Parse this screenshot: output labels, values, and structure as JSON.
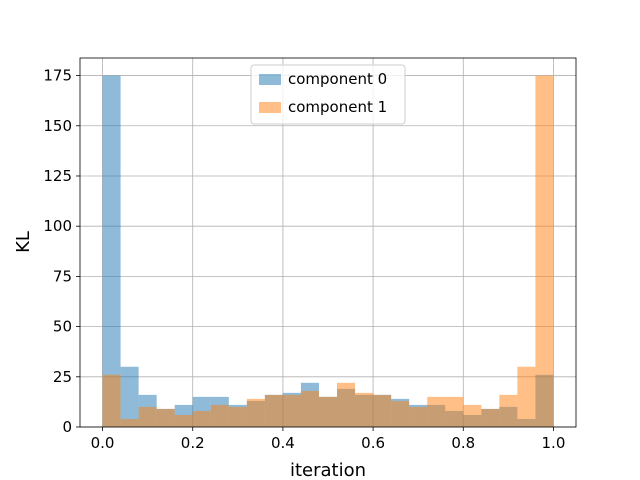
{
  "chart_data": {
    "type": "bar",
    "title": "",
    "xlabel": "iteration",
    "ylabel": "KL",
    "xlim": [
      -0.05,
      1.05
    ],
    "ylim": [
      0,
      183.75
    ],
    "grid": true,
    "legend_position": "top-center",
    "x_ticks": [
      0.0,
      0.2,
      0.4,
      0.6,
      0.8,
      1.0
    ],
    "x_tick_labels": [
      "0.0",
      "0.2",
      "0.4",
      "0.6",
      "0.8",
      "1.0"
    ],
    "y_ticks": [
      0,
      25,
      50,
      75,
      100,
      125,
      150,
      175
    ],
    "y_tick_labels": [
      "0",
      "25",
      "50",
      "75",
      "100",
      "125",
      "150",
      "175"
    ],
    "bin_edges": [
      0.0,
      0.04,
      0.08,
      0.12,
      0.16,
      0.2,
      0.24,
      0.28,
      0.32,
      0.36,
      0.4,
      0.44,
      0.48,
      0.52,
      0.56,
      0.6,
      0.64,
      0.68,
      0.72,
      0.76,
      0.8,
      0.84,
      0.88,
      0.92,
      0.96,
      1.0
    ],
    "series": [
      {
        "name": "component 0",
        "color": "#1f77b4",
        "values": [
          175,
          30,
          16,
          9,
          11,
          15,
          15,
          11,
          13,
          16,
          17,
          22,
          15,
          19,
          16,
          16,
          14,
          11,
          11,
          8,
          6,
          9,
          10,
          4,
          26
        ]
      },
      {
        "name": "component 1",
        "color": "#ff7f0e",
        "values": [
          26,
          4,
          10,
          9,
          6,
          8,
          11,
          10,
          14,
          16,
          16,
          18,
          15,
          22,
          17,
          16,
          13,
          10,
          15,
          15,
          11,
          9,
          16,
          30,
          175
        ]
      }
    ]
  }
}
